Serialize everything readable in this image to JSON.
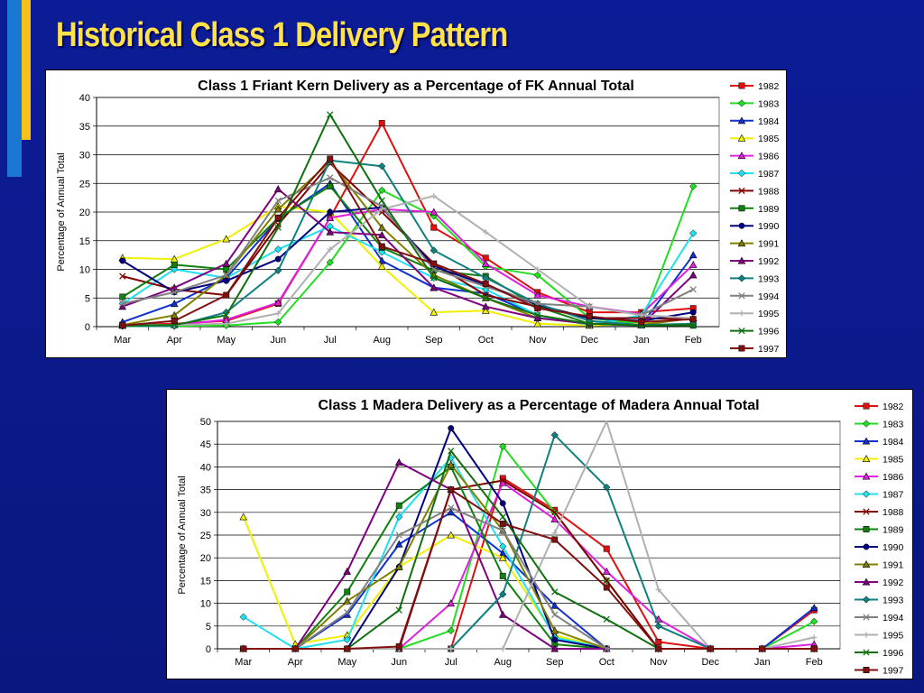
{
  "slide": {
    "title": "Historical Class 1 Delivery Pattern"
  },
  "colors": {
    "background": "#0a1a8c",
    "title": "#ffe24a",
    "accent_bar_blue": "#1a78d4",
    "accent_bar_gold": "#f6c21a"
  },
  "chart_data": [
    {
      "type": "line",
      "title": "Class 1 Friant Kern Delivery as a Percentage of FK Annual Total",
      "xlabel": "",
      "ylabel": "Percentage of Annual Total",
      "ylim": [
        0,
        40
      ],
      "yticks": [
        0,
        5,
        10,
        15,
        20,
        25,
        30,
        35,
        40
      ],
      "grid": true,
      "legend": "right",
      "categories": [
        "Mar",
        "Apr",
        "May",
        "Jun",
        "Jul",
        "Aug",
        "Sep",
        "Oct",
        "Nov",
        "Dec",
        "Jan",
        "Feb"
      ],
      "series": [
        {
          "name": "1982",
          "color": "#e01010",
          "marker": "square",
          "values": [
            0.3,
            0.5,
            1.0,
            4.0,
            19.0,
            35.5,
            17.3,
            12.0,
            6.0,
            2.5,
            2.5,
            3.2
          ]
        },
        {
          "name": "1983",
          "color": "#22dd22",
          "marker": "diamond",
          "values": [
            0.1,
            0.1,
            0.2,
            0.8,
            11.2,
            23.8,
            19.3,
            10.5,
            9.0,
            1.5,
            0.5,
            24.5
          ]
        },
        {
          "name": "1984",
          "color": "#1030d0",
          "marker": "triangle",
          "values": [
            0.8,
            4.0,
            8.5,
            18.8,
            25.0,
            11.5,
            6.8,
            5.8,
            2.0,
            0.3,
            0.3,
            12.5
          ]
        },
        {
          "name": "1985",
          "color": "#f0f000",
          "marker": "triangle-open",
          "values": [
            12.0,
            11.8,
            15.3,
            21.0,
            20.0,
            10.5,
            2.5,
            2.8,
            0.5,
            0.2,
            0.5,
            1.5
          ]
        },
        {
          "name": "1986",
          "color": "#e020e0",
          "marker": "triangle",
          "values": [
            0.2,
            0.3,
            1.2,
            4.2,
            19.0,
            20.5,
            20.0,
            11.0,
            5.5,
            3.5,
            2.2,
            10.8
          ]
        },
        {
          "name": "1987",
          "color": "#20e0f0",
          "marker": "diamond",
          "values": [
            4.0,
            10.0,
            8.5,
            13.5,
            17.5,
            13.0,
            8.5,
            6.5,
            2.0,
            0.3,
            2.0,
            16.3
          ]
        },
        {
          "name": "1988",
          "color": "#800000",
          "marker": "x",
          "values": [
            8.8,
            6.5,
            5.5,
            17.8,
            28.5,
            20.0,
            11.0,
            5.5,
            3.5,
            1.5,
            1.5,
            1.3
          ]
        },
        {
          "name": "1989",
          "color": "#108010",
          "marker": "square",
          "values": [
            5.2,
            10.8,
            10.0,
            19.0,
            24.5,
            13.8,
            9.8,
            8.8,
            3.5,
            0.5,
            0.3,
            0.2
          ]
        },
        {
          "name": "1990",
          "color": "#000080",
          "marker": "circle",
          "values": [
            11.5,
            6.0,
            8.0,
            11.8,
            20.0,
            20.8,
            10.5,
            7.3,
            3.8,
            1.5,
            1.0,
            2.5
          ]
        },
        {
          "name": "1991",
          "color": "#808000",
          "marker": "triangle",
          "values": [
            0.3,
            2.0,
            9.0,
            20.5,
            28.8,
            17.3,
            9.0,
            5.0,
            1.5,
            0.5,
            0.3,
            1.5
          ]
        },
        {
          "name": "1992",
          "color": "#800080",
          "marker": "triangle",
          "values": [
            3.5,
            6.8,
            11.0,
            24.0,
            16.5,
            16.0,
            6.8,
            3.5,
            1.5,
            0.5,
            0.3,
            9.0
          ]
        },
        {
          "name": "1993",
          "color": "#108080",
          "marker": "diamond",
          "values": [
            0.1,
            0.1,
            2.5,
            9.8,
            29.0,
            28.0,
            13.3,
            8.5,
            4.0,
            1.0,
            0.3,
            0.5
          ]
        },
        {
          "name": "1994",
          "color": "#808080",
          "marker": "x",
          "values": [
            4.0,
            6.0,
            9.0,
            22.0,
            26.0,
            21.0,
            10.0,
            7.0,
            4.0,
            3.5,
            2.0,
            6.5
          ]
        },
        {
          "name": "1995",
          "color": "#b0b0b0",
          "marker": "plus",
          "values": [
            0.3,
            0.3,
            0.5,
            2.3,
            13.5,
            20.5,
            22.8,
            16.5,
            10.0,
            3.5,
            2.0,
            1.5
          ]
        },
        {
          "name": "1996",
          "color": "#107010",
          "marker": "x",
          "values": [
            0.2,
            0.3,
            2.0,
            17.3,
            37.0,
            22.0,
            8.5,
            5.0,
            2.0,
            0.5,
            0.2,
            0.3
          ]
        },
        {
          "name": "1997",
          "color": "#801010",
          "marker": "square",
          "values": [
            0.2,
            1.0,
            5.5,
            19.0,
            29.3,
            14.0,
            11.0,
            7.5,
            3.2,
            1.8,
            0.8,
            1.3
          ]
        }
      ]
    },
    {
      "type": "line",
      "title": "Class 1 Madera Delivery as a Percentage of Madera Annual Total",
      "xlabel": "",
      "ylabel": "Percentage of Annual Total",
      "ylim": [
        0,
        50
      ],
      "yticks": [
        0,
        5,
        10,
        15,
        20,
        25,
        30,
        35,
        40,
        45,
        50
      ],
      "grid": true,
      "legend": "right",
      "categories": [
        "Mar",
        "Apr",
        "May",
        "Jun",
        "Jul",
        "Aug",
        "Sep",
        "Oct",
        "Nov",
        "Dec",
        "Jan",
        "Feb"
      ],
      "series": [
        {
          "name": "1982",
          "color": "#e01010",
          "marker": "square",
          "values": [
            0,
            0,
            0,
            0,
            0,
            37.5,
            30.5,
            22.0,
            1.5,
            0,
            0,
            8.5
          ]
        },
        {
          "name": "1983",
          "color": "#22dd22",
          "marker": "diamond",
          "values": [
            0,
            0,
            0,
            0,
            4.0,
            44.5,
            30.0,
            15.0,
            0,
            0,
            0,
            6.0
          ]
        },
        {
          "name": "1984",
          "color": "#1030d0",
          "marker": "triangle",
          "values": [
            0,
            0,
            7.5,
            23.0,
            30.0,
            21.0,
            9.5,
            0,
            0,
            0,
            0,
            9.0
          ]
        },
        {
          "name": "1985",
          "color": "#f0f000",
          "marker": "triangle-open",
          "values": [
            29.0,
            1.0,
            3.0,
            18.0,
            25.0,
            20.0,
            3.0,
            0,
            0,
            0,
            0,
            0
          ]
        },
        {
          "name": "1986",
          "color": "#e020e0",
          "marker": "triangle",
          "values": [
            0,
            0,
            0,
            0,
            10.0,
            36.5,
            28.5,
            17.0,
            6.5,
            0,
            0,
            1.0
          ]
        },
        {
          "name": "1987",
          "color": "#20e0f0",
          "marker": "diamond",
          "values": [
            7.0,
            0,
            2.0,
            29.0,
            42.0,
            22.5,
            2.5,
            0,
            0,
            0,
            0,
            0
          ]
        },
        {
          "name": "1988",
          "color": "#800000",
          "marker": "x",
          "values": [
            0,
            0,
            0,
            0,
            35.0,
            37.0,
            30.0,
            15.0,
            0,
            0,
            0,
            0
          ]
        },
        {
          "name": "1989",
          "color": "#108010",
          "marker": "square",
          "values": [
            0,
            0,
            12.5,
            31.5,
            40.0,
            16.0,
            1.0,
            0,
            0,
            0,
            0,
            0
          ]
        },
        {
          "name": "1990",
          "color": "#000080",
          "marker": "circle",
          "values": [
            0,
            0,
            0,
            18.0,
            48.5,
            32.0,
            2.0,
            0,
            0,
            0,
            0,
            0
          ]
        },
        {
          "name": "1991",
          "color": "#808000",
          "marker": "triangle",
          "values": [
            0,
            0,
            10.5,
            18.0,
            40.5,
            26.0,
            4.0,
            0,
            0,
            0,
            0,
            0
          ]
        },
        {
          "name": "1992",
          "color": "#800080",
          "marker": "triangle",
          "values": [
            0,
            0,
            17.0,
            41.0,
            35.0,
            7.5,
            0,
            0,
            0,
            0,
            0,
            0
          ]
        },
        {
          "name": "1993",
          "color": "#108080",
          "marker": "diamond",
          "values": [
            0,
            0,
            0,
            0,
            0,
            12.0,
            47.0,
            35.5,
            5.0,
            0,
            0,
            0
          ]
        },
        {
          "name": "1994",
          "color": "#808080",
          "marker": "x",
          "values": [
            0,
            0,
            8.0,
            25.0,
            31.0,
            26.0,
            7.5,
            0,
            0,
            0,
            0,
            0
          ]
        },
        {
          "name": "1995",
          "color": "#b0b0b0",
          "marker": "plus",
          "values": [
            0,
            0,
            0,
            0,
            0,
            0,
            25.5,
            52.5,
            13.0,
            0,
            0,
            2.5
          ]
        },
        {
          "name": "1996",
          "color": "#107010",
          "marker": "x",
          "values": [
            0,
            0,
            0,
            8.5,
            43.5,
            29.0,
            12.5,
            6.5,
            0,
            0,
            0,
            0
          ]
        },
        {
          "name": "1997",
          "color": "#801010",
          "marker": "square",
          "values": [
            0,
            0,
            0,
            0.5,
            35.0,
            27.5,
            24.0,
            13.5,
            0,
            0,
            0,
            0
          ]
        }
      ]
    }
  ]
}
